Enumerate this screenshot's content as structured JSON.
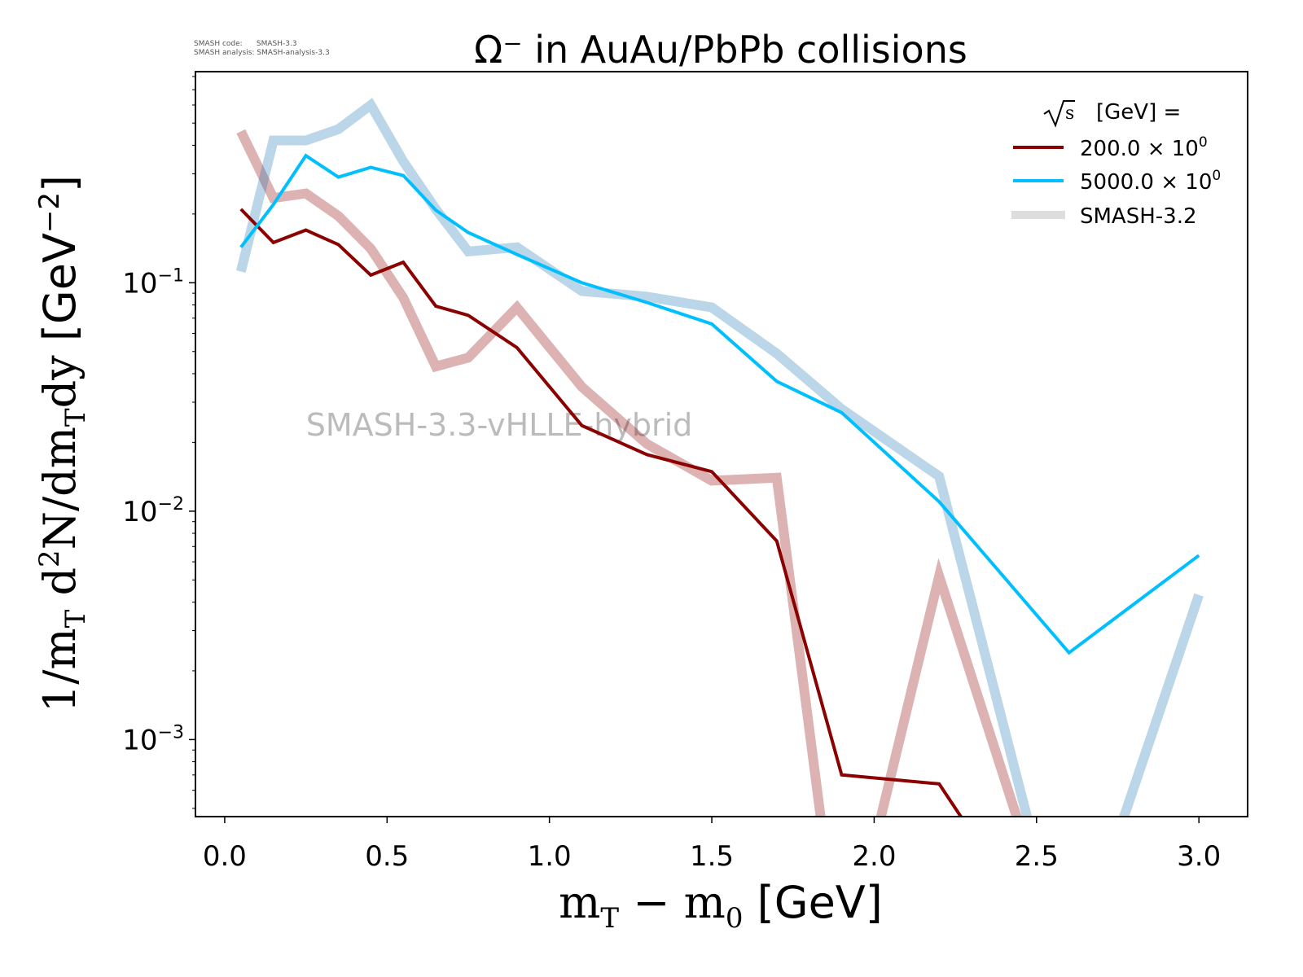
{
  "meta": {
    "code_line": "SMASH code:      SMASH-3.3",
    "analysis_line": "SMASH analysis: SMASH-analysis-3.3"
  },
  "chart_data": {
    "type": "line",
    "title": "Ω⁻ in AuAu/PbPb collisions",
    "xlabel": "m_T − m_0 [GeV]",
    "ylabel": "1/m_T d²N/dm_Tdy [GeV⁻²]",
    "xlim": [
      -0.09,
      3.15
    ],
    "ylim": [
      0.00046,
      0.84
    ],
    "yscale": "log",
    "grid": false,
    "x_ticks": [
      "0.0",
      "0.5",
      "1.0",
      "1.5",
      "2.0",
      "2.5",
      "3.0"
    ],
    "y_ticks": [
      {
        "value": 0.1,
        "label": "10",
        "exp": "−1"
      },
      {
        "value": 0.01,
        "label": "10",
        "exp": "−2"
      },
      {
        "value": 0.001,
        "label": "10",
        "exp": "−3"
      }
    ],
    "watermark": "SMASH-3.3-vHLLE-hybrid",
    "legend": {
      "title_sqrt": "s",
      "title_rest": "[GeV] =",
      "placement": "top-right"
    },
    "series": [
      {
        "name": "SMASH-3.2",
        "ref_for": "200.0",
        "color": "#8b0000",
        "reference": true,
        "x": [
          0.05,
          0.15,
          0.25,
          0.35,
          0.45,
          0.55,
          0.65,
          0.75,
          0.9,
          1.1,
          1.3,
          1.5,
          1.7,
          1.9,
          2.2,
          2.6
        ],
        "y": [
          0.46,
          0.235,
          0.246,
          0.196,
          0.141,
          0.086,
          0.043,
          0.047,
          0.078,
          0.035,
          0.0197,
          0.0136,
          0.014,
          0,
          0.0052,
          0
        ]
      },
      {
        "name": "SMASH-3.2",
        "ref_for": "5000.0",
        "color": "#1f77b4",
        "reference": true,
        "x": [
          0.05,
          0.15,
          0.25,
          0.35,
          0.45,
          0.55,
          0.65,
          0.75,
          0.9,
          1.1,
          1.3,
          1.5,
          1.7,
          1.9,
          2.2,
          2.6,
          3.0
        ],
        "y": [
          0.112,
          0.42,
          0.42,
          0.47,
          0.6,
          0.34,
          0.21,
          0.137,
          0.143,
          0.092,
          0.087,
          0.078,
          0.049,
          0.028,
          0.0142,
          0,
          0.0043
        ]
      },
      {
        "name": "200.0 × 10",
        "exp": "0",
        "color": "#8b0000",
        "x": [
          0.05,
          0.15,
          0.25,
          0.35,
          0.45,
          0.55,
          0.65,
          0.75,
          0.9,
          1.1,
          1.3,
          1.5,
          1.7,
          1.9,
          2.2,
          2.6
        ],
        "y": [
          0.21,
          0.15,
          0.17,
          0.147,
          0.108,
          0.123,
          0.079,
          0.072,
          0.052,
          0.0237,
          0.0177,
          0.0149,
          0.0074,
          0.0007,
          0.00064,
          0
        ]
      },
      {
        "name": "5000.0 × 10",
        "exp": "0",
        "color": "#00bfff",
        "x": [
          0.05,
          0.15,
          0.25,
          0.35,
          0.45,
          0.55,
          0.65,
          0.75,
          0.9,
          1.1,
          1.3,
          1.5,
          1.7,
          1.9,
          2.2,
          2.6,
          3.0
        ],
        "y": [
          0.143,
          0.22,
          0.36,
          0.29,
          0.32,
          0.295,
          0.208,
          0.166,
          0.133,
          0.1,
          0.082,
          0.066,
          0.037,
          0.027,
          0.011,
          0.0024,
          0.0064
        ]
      }
    ]
  }
}
